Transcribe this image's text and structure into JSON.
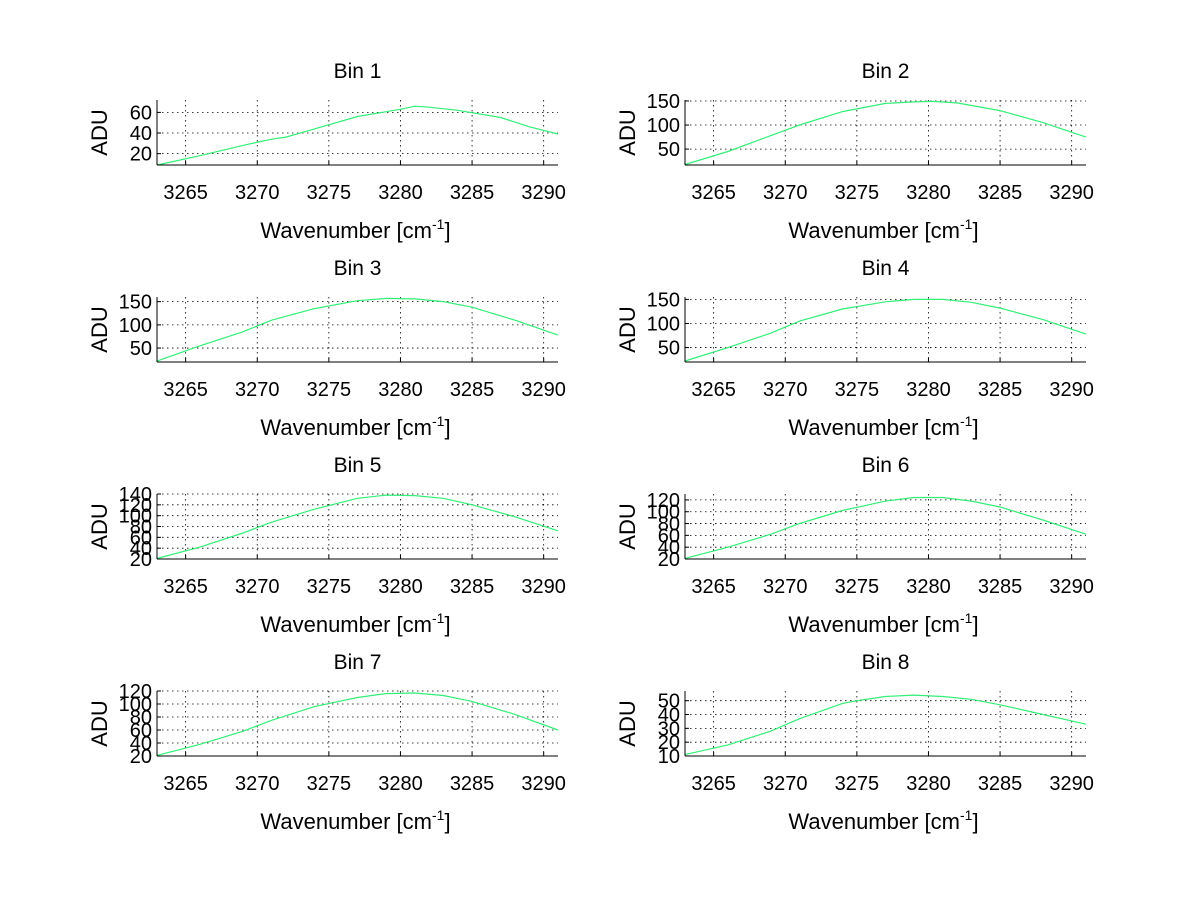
{
  "figure": {
    "background": "#ffffff",
    "line_color": "#33ee77"
  },
  "chart_data": [
    {
      "type": "line",
      "title": "Bin 1",
      "xlabel": "Wavenumber [cm",
      "xlabel_sup": "-1",
      "xlabel_close": "]",
      "ylabel": "ADU",
      "xlim": [
        3263,
        3291
      ],
      "ylim": [
        9,
        72
      ],
      "xticks": [
        3265,
        3270,
        3275,
        3280,
        3285,
        3290
      ],
      "yticks": [
        20,
        40,
        60
      ],
      "grid": true,
      "x": [
        3263,
        3266,
        3269,
        3271,
        3272,
        3274,
        3277,
        3280,
        3281,
        3282,
        3284,
        3287,
        3289,
        3291
      ],
      "y": [
        9,
        18,
        28,
        34,
        36,
        44,
        56,
        63,
        66,
        65,
        62,
        55,
        46,
        39
      ]
    },
    {
      "type": "line",
      "title": "Bin 2",
      "xlabel": "Wavenumber [cm",
      "xlabel_sup": "-1",
      "xlabel_close": "]",
      "ylabel": "ADU",
      "xlim": [
        3263,
        3291
      ],
      "ylim": [
        17,
        152
      ],
      "xticks": [
        3265,
        3270,
        3275,
        3280,
        3285,
        3290
      ],
      "yticks": [
        50,
        100,
        150
      ],
      "grid": true,
      "x": [
        3263,
        3266,
        3269,
        3271,
        3274,
        3277,
        3279,
        3280.3,
        3282,
        3285,
        3288,
        3291
      ],
      "y": [
        18,
        45,
        78,
        100,
        128,
        145,
        148,
        149,
        146,
        130,
        105,
        75
      ]
    },
    {
      "type": "line",
      "title": "Bin 3",
      "xlabel": "Wavenumber [cm",
      "xlabel_sup": "-1",
      "xlabel_close": "]",
      "ylabel": "ADU",
      "xlim": [
        3263,
        3291
      ],
      "ylim": [
        20,
        160
      ],
      "xticks": [
        3265,
        3270,
        3275,
        3280,
        3285,
        3290
      ],
      "yticks": [
        50,
        100,
        150
      ],
      "grid": true,
      "x": [
        3263,
        3266,
        3269,
        3271,
        3274,
        3277,
        3279,
        3281,
        3283,
        3285,
        3288,
        3291
      ],
      "y": [
        22,
        55,
        85,
        110,
        135,
        152,
        157,
        156,
        150,
        138,
        110,
        78
      ]
    },
    {
      "type": "line",
      "title": "Bin 4",
      "xlabel": "Wavenumber [cm",
      "xlabel_sup": "-1",
      "xlabel_close": "]",
      "ylabel": "ADU",
      "xlim": [
        3263,
        3291
      ],
      "ylim": [
        20,
        155
      ],
      "xticks": [
        3265,
        3270,
        3275,
        3280,
        3285,
        3290
      ],
      "yticks": [
        50,
        100,
        150
      ],
      "grid": true,
      "x": [
        3263,
        3266,
        3269,
        3271,
        3274,
        3277,
        3279,
        3281,
        3283,
        3285,
        3288,
        3291
      ],
      "y": [
        22,
        50,
        80,
        105,
        130,
        145,
        150,
        150,
        144,
        132,
        108,
        78
      ]
    },
    {
      "type": "line",
      "title": "Bin 5",
      "xlabel": "Wavenumber [cm",
      "xlabel_sup": "-1",
      "xlabel_close": "]",
      "ylabel": "ADU",
      "xlim": [
        3263,
        3291
      ],
      "ylim": [
        20,
        140
      ],
      "xticks": [
        3265,
        3270,
        3275,
        3280,
        3285,
        3290
      ],
      "yticks": [
        20,
        40,
        60,
        80,
        100,
        120,
        140
      ],
      "grid": true,
      "x": [
        3263,
        3266,
        3269,
        3271,
        3274,
        3277,
        3279,
        3281,
        3283,
        3285,
        3288,
        3291
      ],
      "y": [
        21,
        42,
        68,
        88,
        112,
        132,
        138,
        137,
        132,
        120,
        98,
        72
      ]
    },
    {
      "type": "line",
      "title": "Bin 6",
      "xlabel": "Wavenumber [cm",
      "xlabel_sup": "-1",
      "xlabel_close": "]",
      "ylabel": "ADU",
      "xlim": [
        3263,
        3291
      ],
      "ylim": [
        20,
        130
      ],
      "xticks": [
        3265,
        3270,
        3275,
        3280,
        3285,
        3290
      ],
      "yticks": [
        20,
        40,
        60,
        80,
        100,
        120
      ],
      "grid": true,
      "x": [
        3263,
        3266,
        3269,
        3271,
        3274,
        3277,
        3279,
        3281,
        3283,
        3285,
        3288,
        3291
      ],
      "y": [
        21,
        40,
        62,
        80,
        102,
        118,
        124,
        124,
        118,
        108,
        86,
        62
      ]
    },
    {
      "type": "line",
      "title": "Bin 7",
      "xlabel": "Wavenumber [cm",
      "xlabel_sup": "-1",
      "xlabel_close": "]",
      "ylabel": "ADU",
      "xlim": [
        3263,
        3291
      ],
      "ylim": [
        20,
        120
      ],
      "xticks": [
        3265,
        3270,
        3275,
        3280,
        3285,
        3290
      ],
      "yticks": [
        20,
        40,
        60,
        80,
        100,
        120
      ],
      "grid": true,
      "x": [
        3263,
        3266,
        3269,
        3271,
        3274,
        3277,
        3279,
        3281,
        3283,
        3285,
        3288,
        3291
      ],
      "y": [
        21,
        38,
        58,
        75,
        96,
        110,
        116,
        117,
        113,
        104,
        84,
        60
      ]
    },
    {
      "type": "line",
      "title": "Bin 8",
      "xlabel": "Wavenumber [cm",
      "xlabel_sup": "-1",
      "xlabel_close": "]",
      "ylabel": "ADU",
      "xlim": [
        3263,
        3291
      ],
      "ylim": [
        10,
        57
      ],
      "xticks": [
        3265,
        3270,
        3275,
        3280,
        3285,
        3290
      ],
      "yticks": [
        10,
        20,
        30,
        40,
        50
      ],
      "grid": true,
      "x": [
        3263,
        3266,
        3269,
        3271,
        3274,
        3275,
        3277,
        3279,
        3281,
        3283,
        3285,
        3288,
        3291
      ],
      "y": [
        11,
        18,
        28,
        37,
        48,
        50,
        53,
        54,
        53,
        51,
        47,
        40,
        33
      ]
    }
  ]
}
